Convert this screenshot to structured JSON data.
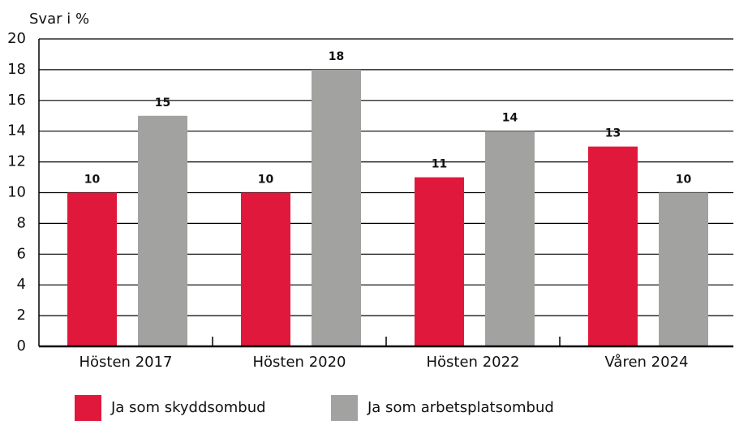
{
  "chart_data": {
    "type": "bar",
    "y_label": "Svar i %",
    "categories": [
      "Hösten 2017",
      "Hösten 2020",
      "Hösten 2022",
      "Våren 2024"
    ],
    "series": [
      {
        "name": "Ja som skyddsombud",
        "color": "#e0193c",
        "values": [
          10,
          10,
          11,
          13
        ]
      },
      {
        "name": "Ja som arbetsplatsombud",
        "color": "#a2a2a0",
        "values": [
          15,
          18,
          14,
          10
        ]
      }
    ],
    "ylim": [
      0,
      20
    ],
    "yticks": [
      0,
      2,
      4,
      6,
      8,
      10,
      12,
      14,
      16,
      18,
      20
    ],
    "grid": true,
    "legend": "bottom"
  }
}
